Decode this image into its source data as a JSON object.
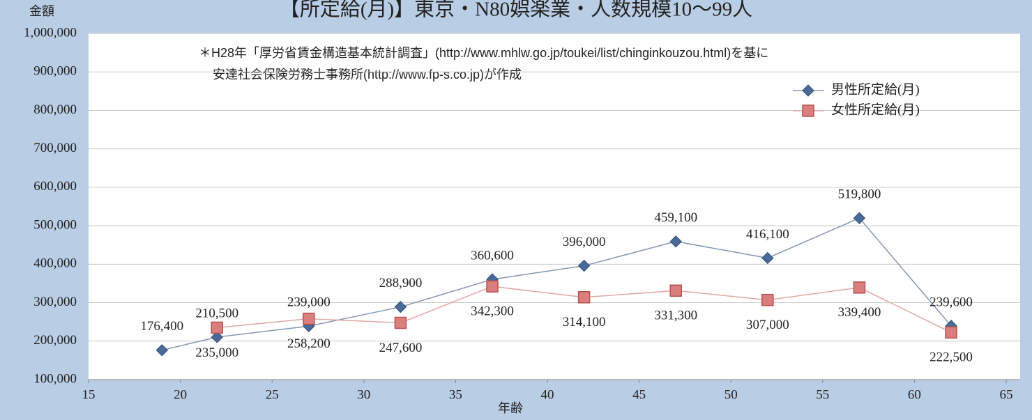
{
  "chart_data": {
    "type": "line",
    "title": "【所定給(月)】東京・N80娯楽業・人数規模10～99人",
    "y_label": "金額",
    "x_label": "年齢",
    "annotations": [
      "＊H28年「厚労省賃金構造基本統計調査」(http://www.mhlw.go.jp/toukei/list/chinginkouzou.html)を基に",
      "安達社会保険労務士事務所(http://www.fp-s.co.jp)が作成"
    ],
    "x": [
      19,
      22,
      27,
      32,
      37,
      42,
      47,
      52,
      57,
      62
    ],
    "series": [
      {
        "name": "男性所定給(月)",
        "color": "#4a6a9a",
        "line_color": "#8496b2",
        "marker": "diamond",
        "values": [
          176400,
          210500,
          239000,
          288900,
          360600,
          396000,
          459100,
          416100,
          519800,
          239600
        ],
        "value_labels": [
          "176,400",
          "210,500",
          "239,000",
          "288,900",
          "360,600",
          "396,000",
          "459,100",
          "416,100",
          "519,800",
          "239,600"
        ]
      },
      {
        "name": "女性所定給(月)",
        "color": "#d9807e",
        "line_color": "#e3a6a5",
        "marker": "square",
        "values": [
          null,
          235000,
          258200,
          247600,
          342300,
          314100,
          331300,
          307000,
          339400,
          222500
        ],
        "value_labels": [
          null,
          "235,000",
          "258,200",
          "247,600",
          "342,300",
          "314,100",
          "331,300",
          "307,000",
          "339,400",
          "222,500"
        ]
      }
    ],
    "xlim": [
      15,
      65
    ],
    "xticks": [
      15,
      20,
      25,
      30,
      35,
      40,
      45,
      50,
      55,
      60,
      65
    ],
    "ylim": [
      100000,
      1000000
    ],
    "yticks": [
      {
        "value": 100000,
        "label": "100,000"
      },
      {
        "value": 200000,
        "label": "200,000"
      },
      {
        "value": 300000,
        "label": "300,000"
      },
      {
        "value": 400000,
        "label": "400,000"
      },
      {
        "value": 500000,
        "label": "500,000"
      },
      {
        "value": 600000,
        "label": "600,000"
      },
      {
        "value": 700000,
        "label": "700,000"
      },
      {
        "value": 800000,
        "label": "800,000"
      },
      {
        "value": 900000,
        "label": "900,000"
      },
      {
        "value": 1000000,
        "label": "1,000,000"
      }
    ],
    "grid": true,
    "legend": "upper right"
  }
}
